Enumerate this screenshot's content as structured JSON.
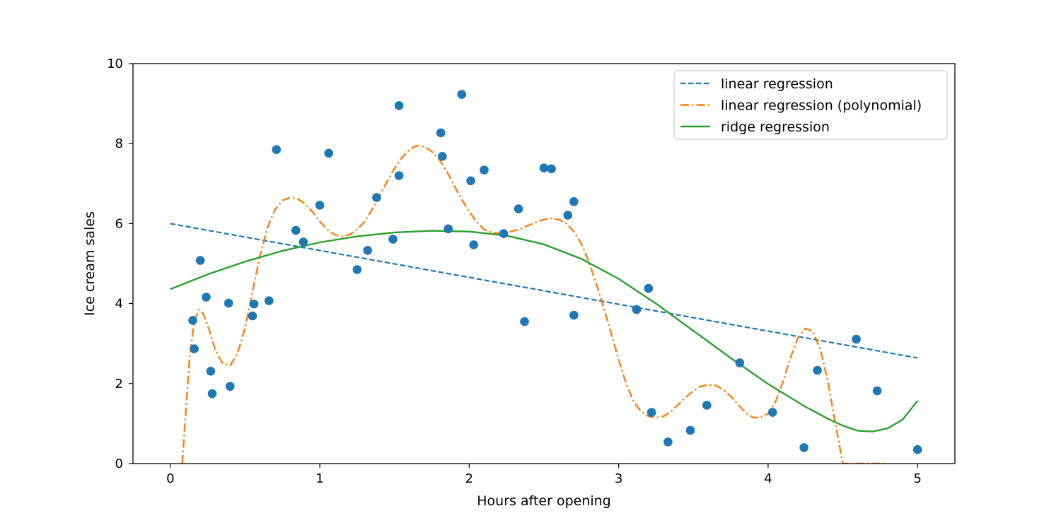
{
  "chart_data": {
    "type": "scatter",
    "title": "",
    "xlabel": "Hours after opening",
    "ylabel": "Ice cream sales",
    "xlim": [
      -0.25,
      5.25
    ],
    "ylim": [
      0,
      10
    ],
    "xticks": [
      0,
      1,
      2,
      3,
      4,
      5
    ],
    "yticks": [
      0,
      2,
      4,
      6,
      8,
      10
    ],
    "legend_position": "top-right",
    "colors": {
      "points": "#1f77b4",
      "linear": "#1f77b4",
      "poly": "#ff7f0e",
      "ridge": "#2ca02c"
    },
    "points": [
      {
        "x": 0.15,
        "y": 3.58
      },
      {
        "x": 0.16,
        "y": 2.87
      },
      {
        "x": 0.2,
        "y": 5.08
      },
      {
        "x": 0.24,
        "y": 4.16
      },
      {
        "x": 0.27,
        "y": 2.31
      },
      {
        "x": 0.28,
        "y": 1.75
      },
      {
        "x": 0.39,
        "y": 4.01
      },
      {
        "x": 0.4,
        "y": 1.93
      },
      {
        "x": 0.55,
        "y": 3.69
      },
      {
        "x": 0.56,
        "y": 3.99
      },
      {
        "x": 0.66,
        "y": 4.07
      },
      {
        "x": 0.71,
        "y": 7.85
      },
      {
        "x": 0.84,
        "y": 5.83
      },
      {
        "x": 0.89,
        "y": 5.54
      },
      {
        "x": 1.0,
        "y": 6.46
      },
      {
        "x": 1.06,
        "y": 7.76
      },
      {
        "x": 1.25,
        "y": 4.85
      },
      {
        "x": 1.32,
        "y": 5.33
      },
      {
        "x": 1.38,
        "y": 6.65
      },
      {
        "x": 1.49,
        "y": 5.61
      },
      {
        "x": 1.53,
        "y": 7.2
      },
      {
        "x": 1.53,
        "y": 8.95
      },
      {
        "x": 1.81,
        "y": 8.27
      },
      {
        "x": 1.82,
        "y": 7.68
      },
      {
        "x": 1.86,
        "y": 5.87
      },
      {
        "x": 1.95,
        "y": 9.23
      },
      {
        "x": 2.01,
        "y": 7.07
      },
      {
        "x": 2.03,
        "y": 5.47
      },
      {
        "x": 2.1,
        "y": 7.34
      },
      {
        "x": 2.23,
        "y": 5.75
      },
      {
        "x": 2.33,
        "y": 6.37
      },
      {
        "x": 2.37,
        "y": 3.55
      },
      {
        "x": 2.5,
        "y": 7.39
      },
      {
        "x": 2.55,
        "y": 7.37
      },
      {
        "x": 2.66,
        "y": 6.21
      },
      {
        "x": 2.7,
        "y": 6.55
      },
      {
        "x": 2.7,
        "y": 3.71
      },
      {
        "x": 3.12,
        "y": 3.85
      },
      {
        "x": 3.2,
        "y": 4.38
      },
      {
        "x": 3.22,
        "y": 1.28
      },
      {
        "x": 3.33,
        "y": 0.54
      },
      {
        "x": 3.48,
        "y": 0.83
      },
      {
        "x": 3.59,
        "y": 1.46
      },
      {
        "x": 3.81,
        "y": 2.52
      },
      {
        "x": 4.03,
        "y": 1.28
      },
      {
        "x": 4.24,
        "y": 0.4
      },
      {
        "x": 4.33,
        "y": 2.33
      },
      {
        "x": 4.59,
        "y": 3.11
      },
      {
        "x": 4.73,
        "y": 1.82
      },
      {
        "x": 5.0,
        "y": 0.35
      }
    ],
    "series": [
      {
        "name": "linear regression",
        "style": "dashed",
        "x": [
          0,
          5
        ],
        "y": [
          6.0,
          2.64
        ]
      },
      {
        "name": "linear regression (polynomial)",
        "style": "dashdot",
        "x": [
          0.08,
          0.1,
          0.13,
          0.16,
          0.19,
          0.22,
          0.26,
          0.3,
          0.35,
          0.4,
          0.45,
          0.5,
          0.55,
          0.6,
          0.65,
          0.7,
          0.75,
          0.8,
          0.85,
          0.9,
          0.95,
          1.0,
          1.05,
          1.1,
          1.15,
          1.2,
          1.25,
          1.3,
          1.35,
          1.4,
          1.45,
          1.5,
          1.55,
          1.6,
          1.65,
          1.7,
          1.75,
          1.8,
          1.85,
          1.9,
          1.95,
          2.0,
          2.05,
          2.1,
          2.15,
          2.2,
          2.25,
          2.3,
          2.35,
          2.4,
          2.45,
          2.5,
          2.55,
          2.6,
          2.65,
          2.7,
          2.75,
          2.8,
          2.85,
          2.9,
          2.95,
          3.0,
          3.05,
          3.1,
          3.15,
          3.2,
          3.25,
          3.3,
          3.35,
          3.4,
          3.45,
          3.5,
          3.55,
          3.6,
          3.65,
          3.7,
          3.75,
          3.8,
          3.85,
          3.9,
          3.95,
          4.0,
          4.05,
          4.1,
          4.15,
          4.2,
          4.25,
          4.3,
          4.35,
          4.4,
          4.45,
          4.5,
          4.55,
          4.58,
          4.61,
          4.64,
          4.67,
          4.7,
          4.73,
          4.76,
          4.78
        ],
        "y": [
          0.0,
          1.1,
          2.7,
          3.55,
          3.85,
          3.75,
          3.35,
          2.85,
          2.5,
          2.45,
          2.75,
          3.4,
          4.3,
          5.2,
          5.9,
          6.35,
          6.58,
          6.65,
          6.62,
          6.5,
          6.3,
          6.05,
          5.85,
          5.72,
          5.68,
          5.72,
          5.85,
          6.05,
          6.35,
          6.7,
          7.05,
          7.38,
          7.65,
          7.85,
          7.95,
          7.92,
          7.8,
          7.6,
          7.3,
          6.95,
          6.6,
          6.3,
          6.05,
          5.85,
          5.78,
          5.76,
          5.78,
          5.82,
          5.88,
          5.96,
          6.04,
          6.1,
          6.13,
          6.1,
          6.0,
          5.8,
          5.5,
          5.05,
          4.5,
          3.9,
          3.25,
          2.6,
          2.0,
          1.55,
          1.3,
          1.18,
          1.15,
          1.18,
          1.3,
          1.48,
          1.66,
          1.82,
          1.93,
          1.97,
          1.95,
          1.85,
          1.68,
          1.47,
          1.27,
          1.15,
          1.15,
          1.25,
          1.55,
          2.05,
          2.65,
          3.15,
          3.38,
          3.3,
          2.85,
          2.05,
          1.0,
          0.0,
          0.0,
          0.0,
          0.0,
          0.0,
          0.0,
          0.0,
          0.0,
          0.0,
          0.0
        ]
      },
      {
        "name": "ridge regression",
        "style": "solid",
        "x": [
          0.0,
          0.25,
          0.5,
          0.75,
          1.0,
          1.25,
          1.5,
          1.75,
          2.0,
          2.25,
          2.5,
          2.75,
          3.0,
          3.25,
          3.5,
          3.75,
          4.0,
          4.25,
          4.4,
          4.5,
          4.6,
          4.7,
          4.8,
          4.9,
          5.0
        ],
        "y": [
          4.36,
          4.73,
          5.05,
          5.32,
          5.53,
          5.68,
          5.78,
          5.82,
          5.8,
          5.7,
          5.48,
          5.12,
          4.62,
          4.0,
          3.32,
          2.64,
          1.99,
          1.42,
          1.12,
          0.95,
          0.82,
          0.8,
          0.88,
          1.1,
          1.57
        ]
      }
    ]
  }
}
